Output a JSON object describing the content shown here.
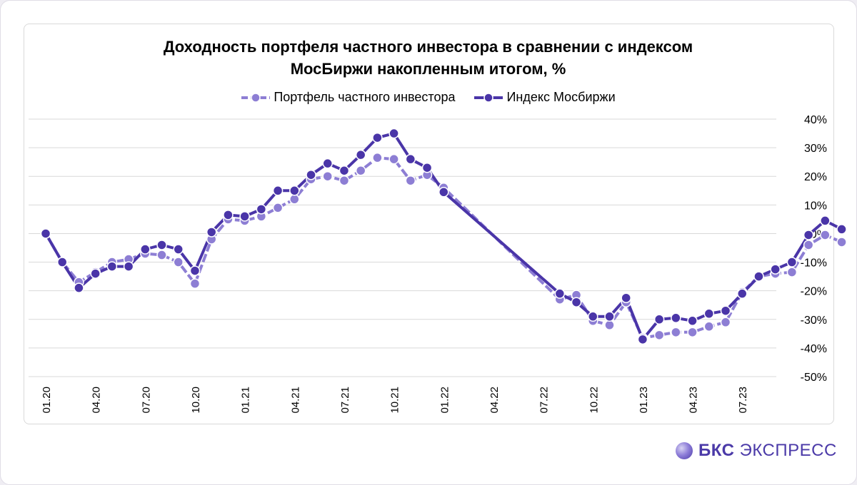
{
  "title_line1": "Доходность портфеля частного инвестора в сравнении с индексом",
  "title_line2": "МосБиржи накопленным итогом, %",
  "brand": {
    "bold": "БКС",
    "rest": "ЭКСПРЕСС"
  },
  "colors": {
    "portfolio": "#8d7ed4",
    "index": "#4a35a8",
    "grid": "#d9d9d9",
    "axis": "#000000"
  },
  "chart_data": {
    "type": "line",
    "title": "Доходность портфеля частного инвестора в сравнении с индексом МосБиржи накопленным итогом, %",
    "xlabel": "",
    "ylabel": "",
    "ylim": [
      -50,
      40
    ],
    "y_ticks": [
      40,
      30,
      20,
      10,
      0,
      -10,
      -20,
      -30,
      -40,
      -50
    ],
    "y_tick_labels": [
      "40%",
      "30%",
      "20%",
      "10%",
      "0%",
      "-10%",
      "-20%",
      "-30%",
      "-40%",
      "-50%"
    ],
    "x_labels": [
      "01.20",
      "04.20",
      "07.20",
      "10.20",
      "01.21",
      "04.21",
      "07.21",
      "10.21",
      "01.22",
      "04.22",
      "07.22",
      "10.22",
      "01.23",
      "04.23",
      "07.23"
    ],
    "x_label_every": 3,
    "legend_position": "top-center",
    "series": [
      {
        "name": "Портфель частного инвестора",
        "style": "dashed",
        "values": [
          0,
          -10,
          -17,
          -13.5,
          -10,
          -9,
          -7,
          -7.5,
          -10,
          -17.5,
          -2,
          5,
          4.5,
          6,
          9,
          12,
          19,
          20,
          18.5,
          22,
          26.5,
          26,
          18.5,
          20.5,
          16,
          null,
          null,
          null,
          null,
          null,
          null,
          -23,
          -21.5,
          -30.5,
          -32,
          -24,
          -36.5,
          -35.5,
          -34.5,
          -34.5,
          -32.5,
          -31,
          -20.5,
          -15,
          -14,
          -13.5,
          -4,
          -0.5,
          -3
        ]
      },
      {
        "name": "Индекс Мосбиржи",
        "style": "solid",
        "values": [
          0,
          -10,
          -19,
          -14,
          -11.5,
          -11.5,
          -5.5,
          -4,
          -5.5,
          -13,
          0.5,
          6.5,
          6,
          8.5,
          15,
          15,
          20.5,
          24.5,
          22,
          27.5,
          33.5,
          35,
          26,
          23,
          14.5,
          null,
          null,
          null,
          null,
          null,
          null,
          -21,
          -24,
          -29,
          -29,
          -22.5,
          -37,
          -30,
          -29.5,
          -30.5,
          -28,
          -27,
          -21,
          -15,
          -12.5,
          -10,
          -0.5,
          4.5,
          1.5
        ]
      }
    ]
  }
}
